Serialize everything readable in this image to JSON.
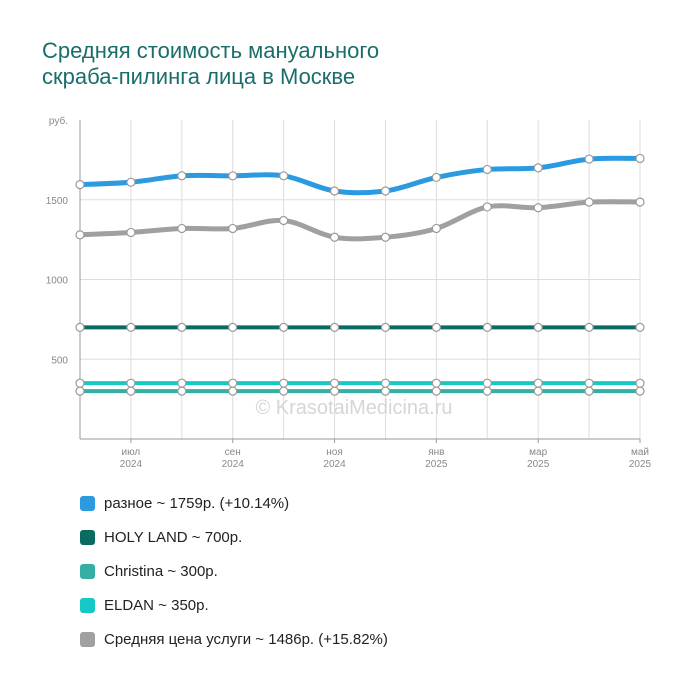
{
  "page": {
    "title_lines": [
      "Средняя стоимость мануального",
      "скраба-пилинга лица в Москве"
    ],
    "watermark": "© KrasotaiMedicina.ru"
  },
  "chart_data": {
    "type": "line",
    "ylabel": "руб.",
    "ylim": [
      0,
      2000
    ],
    "yticks": [
      500,
      1000,
      1500
    ],
    "grid": true,
    "x_labels": [
      {
        "month": "июл",
        "year": "2024"
      },
      {
        "month": "сен",
        "year": "2024"
      },
      {
        "month": "ноя",
        "year": "2024"
      },
      {
        "month": "янв",
        "year": "2025"
      },
      {
        "month": "мар",
        "year": "2025"
      },
      {
        "month": "май",
        "year": "2025"
      }
    ],
    "series": [
      {
        "name": "разное",
        "color": "#2b9ae0",
        "width": 5,
        "values": [
          1595,
          1610,
          1650,
          1650,
          1650,
          1555,
          1555,
          1640,
          1690,
          1700,
          1755,
          1759
        ]
      },
      {
        "name": "Средняя цена услуги",
        "color": "#a0a0a0",
        "width": 5,
        "values": [
          1280,
          1295,
          1320,
          1320,
          1370,
          1265,
          1265,
          1320,
          1455,
          1450,
          1485,
          1486
        ]
      },
      {
        "name": "HOLY LAND",
        "color": "#0a6b63",
        "width": 4,
        "values": [
          700,
          700,
          700,
          700,
          700,
          700,
          700,
          700,
          700,
          700,
          700,
          700
        ]
      },
      {
        "name": "ELDAN",
        "color": "#17c9c4",
        "width": 4,
        "values": [
          350,
          350,
          350,
          350,
          350,
          350,
          350,
          350,
          350,
          350,
          350,
          350
        ]
      },
      {
        "name": "Christina",
        "color": "#36ada5",
        "width": 4,
        "values": [
          300,
          300,
          300,
          300,
          300,
          300,
          300,
          300,
          300,
          300,
          300,
          300
        ]
      }
    ]
  },
  "legend": [
    {
      "text": "разное ~ 1759р. (+10.14%)",
      "color": "#2b9ae0"
    },
    {
      "text": "HOLY LAND ~ 700р.",
      "color": "#0a6b63"
    },
    {
      "text": "Christina ~ 300р.",
      "color": "#36ada5"
    },
    {
      "text": "ELDAN ~ 350р.",
      "color": "#17c9c4"
    },
    {
      "text": "Средняя цена услуги ~ 1486р. (+15.82%)",
      "color": "#a0a0a0"
    }
  ]
}
